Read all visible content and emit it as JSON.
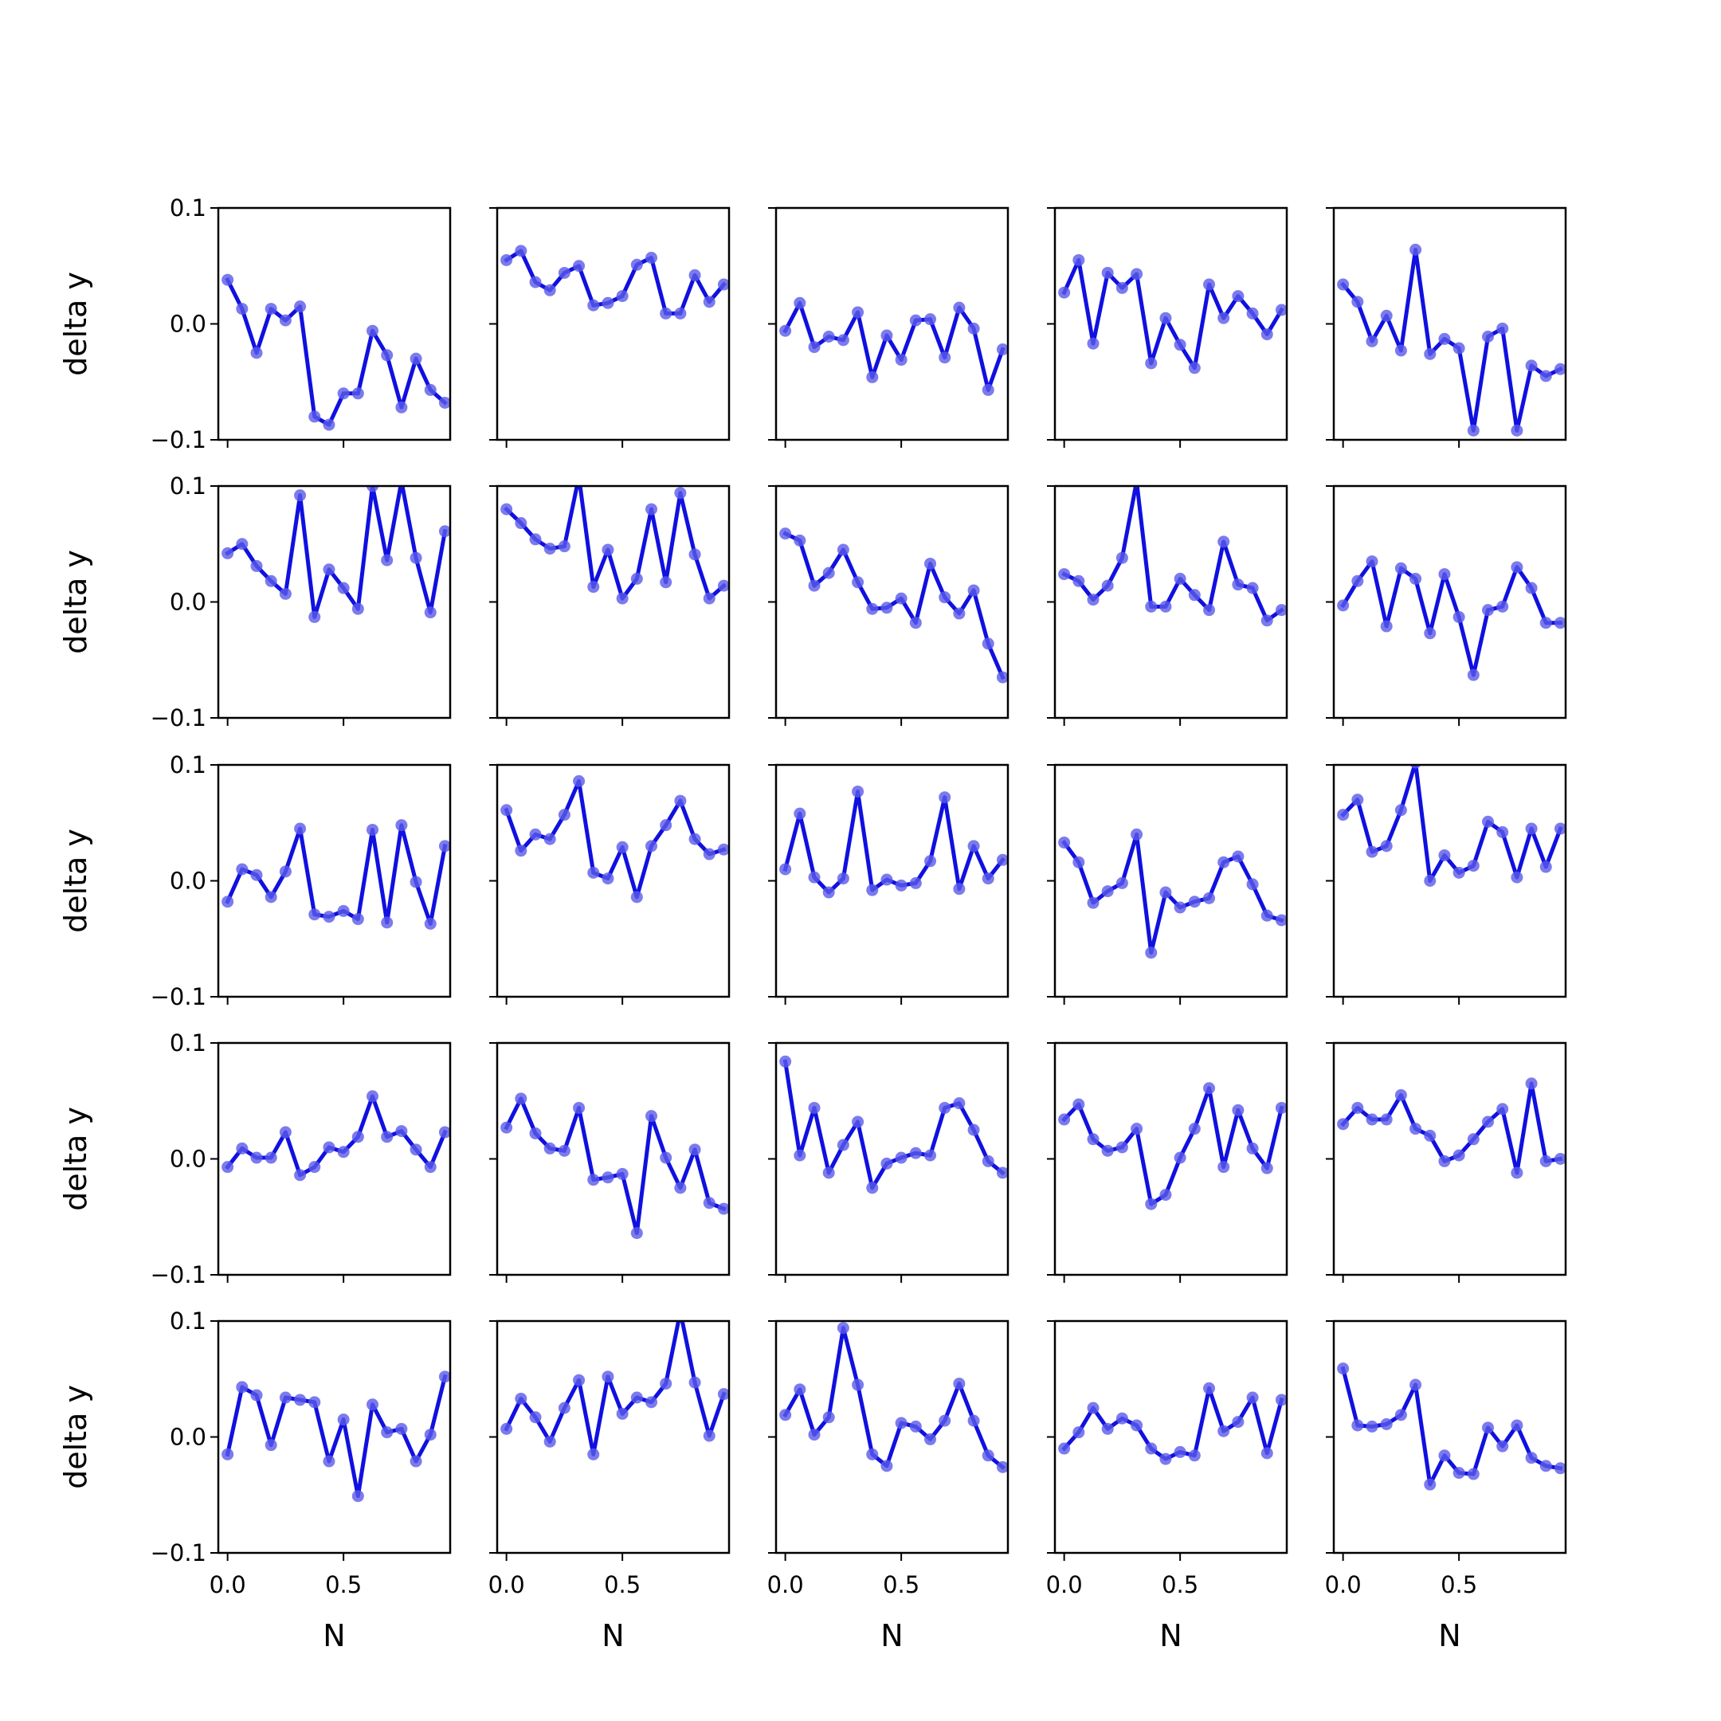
{
  "figure": {
    "ylabel": "delta y",
    "xlabel": "N"
  },
  "colors": {
    "line": "#1010e0",
    "marker": "#5a5aea",
    "axes": "#000000",
    "background": "#ffffff"
  },
  "chart_data": {
    "type": "line",
    "layout": "5x5 grid of small multiples, shared axes",
    "x": [
      0.0,
      0.0625,
      0.125,
      0.1875,
      0.25,
      0.3125,
      0.375,
      0.4375,
      0.5,
      0.5625,
      0.625,
      0.6875,
      0.75,
      0.8125,
      0.875,
      0.9375
    ],
    "xlim": [
      -0.04,
      0.96
    ],
    "ylim": [
      -0.1,
      0.1
    ],
    "xticks": [
      0.0,
      0.5
    ],
    "xtick_labels": [
      "0.0",
      "0.5"
    ],
    "yticks": [
      -0.1,
      0.0,
      0.1
    ],
    "ytick_labels": [
      "−0.1",
      "0.0",
      "0.1"
    ],
    "ylabel": "delta y",
    "xlabel": "N",
    "markers": true,
    "grid": false,
    "panels": [
      {
        "row": 1,
        "col": 1,
        "y": [
          0.038,
          0.013,
          -0.025,
          0.013,
          0.003,
          0.015,
          -0.08,
          -0.087,
          -0.06,
          -0.06,
          -0.006,
          -0.027,
          -0.072,
          -0.03,
          -0.057,
          -0.068
        ]
      },
      {
        "row": 1,
        "col": 2,
        "y": [
          0.055,
          0.063,
          0.036,
          0.029,
          0.044,
          0.05,
          0.016,
          0.018,
          0.024,
          0.051,
          0.057,
          0.009,
          0.009,
          0.042,
          0.019,
          0.034
        ]
      },
      {
        "row": 1,
        "col": 3,
        "y": [
          -0.006,
          0.018,
          -0.02,
          -0.011,
          -0.014,
          0.01,
          -0.046,
          -0.01,
          -0.031,
          0.003,
          0.004,
          -0.029,
          0.014,
          -0.004,
          -0.057,
          -0.022
        ]
      },
      {
        "row": 1,
        "col": 4,
        "y": [
          0.027,
          0.055,
          -0.017,
          0.044,
          0.031,
          0.043,
          -0.034,
          0.005,
          -0.018,
          -0.038,
          0.034,
          0.005,
          0.024,
          0.009,
          -0.009,
          0.012
        ]
      },
      {
        "row": 1,
        "col": 5,
        "y": [
          0.034,
          0.019,
          -0.015,
          0.007,
          -0.023,
          0.064,
          -0.026,
          -0.013,
          -0.021,
          -0.092,
          -0.011,
          -0.004,
          -0.092,
          -0.036,
          -0.045,
          -0.039
        ]
      },
      {
        "row": 2,
        "col": 1,
        "y": [
          0.042,
          0.05,
          0.031,
          0.018,
          0.007,
          0.092,
          -0.013,
          0.028,
          0.012,
          -0.006,
          0.1,
          0.036,
          0.104,
          0.038,
          -0.009,
          0.061
        ]
      },
      {
        "row": 2,
        "col": 2,
        "y": [
          0.08,
          0.068,
          0.054,
          0.046,
          0.048,
          0.108,
          0.013,
          0.045,
          0.003,
          0.02,
          0.08,
          0.017,
          0.094,
          0.041,
          0.003,
          0.014
        ]
      },
      {
        "row": 2,
        "col": 3,
        "y": [
          0.059,
          0.053,
          0.014,
          0.025,
          0.045,
          0.017,
          -0.006,
          -0.005,
          0.003,
          -0.018,
          0.033,
          0.004,
          -0.01,
          0.01,
          -0.036,
          -0.065
        ]
      },
      {
        "row": 2,
        "col": 4,
        "y": [
          0.024,
          0.018,
          0.002,
          0.014,
          0.038,
          0.104,
          -0.004,
          -0.004,
          0.02,
          0.006,
          -0.007,
          0.052,
          0.015,
          0.012,
          -0.016,
          -0.007
        ]
      },
      {
        "row": 2,
        "col": 5,
        "y": [
          -0.003,
          0.018,
          0.035,
          -0.021,
          0.029,
          0.02,
          -0.027,
          0.024,
          -0.013,
          -0.063,
          -0.007,
          -0.004,
          0.03,
          0.012,
          -0.018,
          -0.018
        ]
      },
      {
        "row": 3,
        "col": 1,
        "y": [
          -0.018,
          0.01,
          0.005,
          -0.014,
          0.008,
          0.045,
          -0.029,
          -0.031,
          -0.026,
          -0.033,
          0.044,
          -0.036,
          0.048,
          -0.001,
          -0.037,
          0.03
        ]
      },
      {
        "row": 3,
        "col": 2,
        "y": [
          0.061,
          0.026,
          0.04,
          0.036,
          0.057,
          0.086,
          0.007,
          0.002,
          0.029,
          -0.014,
          0.03,
          0.048,
          0.069,
          0.036,
          0.023,
          0.027
        ]
      },
      {
        "row": 3,
        "col": 3,
        "y": [
          0.01,
          0.058,
          0.003,
          -0.01,
          0.002,
          0.077,
          -0.008,
          0.001,
          -0.004,
          -0.002,
          0.017,
          0.072,
          -0.007,
          0.03,
          0.002,
          0.018
        ]
      },
      {
        "row": 3,
        "col": 4,
        "y": [
          0.033,
          0.016,
          -0.019,
          -0.009,
          -0.002,
          0.04,
          -0.062,
          -0.01,
          -0.023,
          -0.018,
          -0.015,
          0.016,
          0.021,
          -0.003,
          -0.03,
          -0.034
        ]
      },
      {
        "row": 3,
        "col": 5,
        "y": [
          0.057,
          0.07,
          0.025,
          0.03,
          0.061,
          0.102,
          0.0,
          0.022,
          0.007,
          0.013,
          0.051,
          0.042,
          0.003,
          0.045,
          0.012,
          0.045
        ]
      },
      {
        "row": 4,
        "col": 1,
        "y": [
          -0.007,
          0.009,
          0.001,
          0.001,
          0.023,
          -0.014,
          -0.007,
          0.01,
          0.006,
          0.019,
          0.054,
          0.019,
          0.024,
          0.008,
          -0.007,
          0.023
        ]
      },
      {
        "row": 4,
        "col": 2,
        "y": [
          0.027,
          0.052,
          0.022,
          0.009,
          0.007,
          0.044,
          -0.018,
          -0.016,
          -0.013,
          -0.064,
          0.037,
          0.001,
          -0.025,
          0.008,
          -0.038,
          -0.043
        ]
      },
      {
        "row": 4,
        "col": 3,
        "y": [
          0.084,
          0.003,
          0.044,
          -0.012,
          0.012,
          0.032,
          -0.025,
          -0.004,
          0.001,
          0.005,
          0.003,
          0.044,
          0.048,
          0.025,
          -0.002,
          -0.012
        ]
      },
      {
        "row": 4,
        "col": 4,
        "y": [
          0.034,
          0.047,
          0.017,
          0.007,
          0.01,
          0.026,
          -0.039,
          -0.031,
          0.001,
          0.026,
          0.061,
          -0.007,
          0.042,
          0.009,
          -0.008,
          0.044
        ]
      },
      {
        "row": 4,
        "col": 5,
        "y": [
          0.03,
          0.044,
          0.034,
          0.034,
          0.055,
          0.026,
          0.02,
          -0.002,
          0.003,
          0.017,
          0.032,
          0.043,
          -0.012,
          0.065,
          -0.002,
          0.0
        ]
      },
      {
        "row": 5,
        "col": 1,
        "y": [
          -0.015,
          0.043,
          0.036,
          -0.007,
          0.034,
          0.032,
          0.03,
          -0.021,
          0.015,
          -0.051,
          0.028,
          0.004,
          0.007,
          -0.021,
          0.002,
          0.052
        ]
      },
      {
        "row": 5,
        "col": 2,
        "y": [
          0.007,
          0.033,
          0.017,
          -0.004,
          0.025,
          0.049,
          -0.015,
          0.052,
          0.02,
          0.034,
          0.03,
          0.046,
          0.108,
          0.047,
          0.001,
          0.037
        ]
      },
      {
        "row": 5,
        "col": 3,
        "y": [
          0.019,
          0.041,
          0.002,
          0.017,
          0.094,
          0.045,
          -0.015,
          -0.025,
          0.012,
          0.009,
          -0.002,
          0.014,
          0.046,
          0.014,
          -0.016,
          -0.026
        ]
      },
      {
        "row": 5,
        "col": 4,
        "y": [
          -0.01,
          0.004,
          0.025,
          0.007,
          0.016,
          0.01,
          -0.01,
          -0.019,
          -0.013,
          -0.016,
          0.042,
          0.005,
          0.013,
          0.034,
          -0.014,
          0.032
        ]
      },
      {
        "row": 5,
        "col": 5,
        "y": [
          0.059,
          0.01,
          0.009,
          0.011,
          0.019,
          0.045,
          -0.041,
          -0.016,
          -0.031,
          -0.032,
          0.008,
          -0.008,
          0.01,
          -0.018,
          -0.025,
          -0.027
        ]
      }
    ]
  }
}
